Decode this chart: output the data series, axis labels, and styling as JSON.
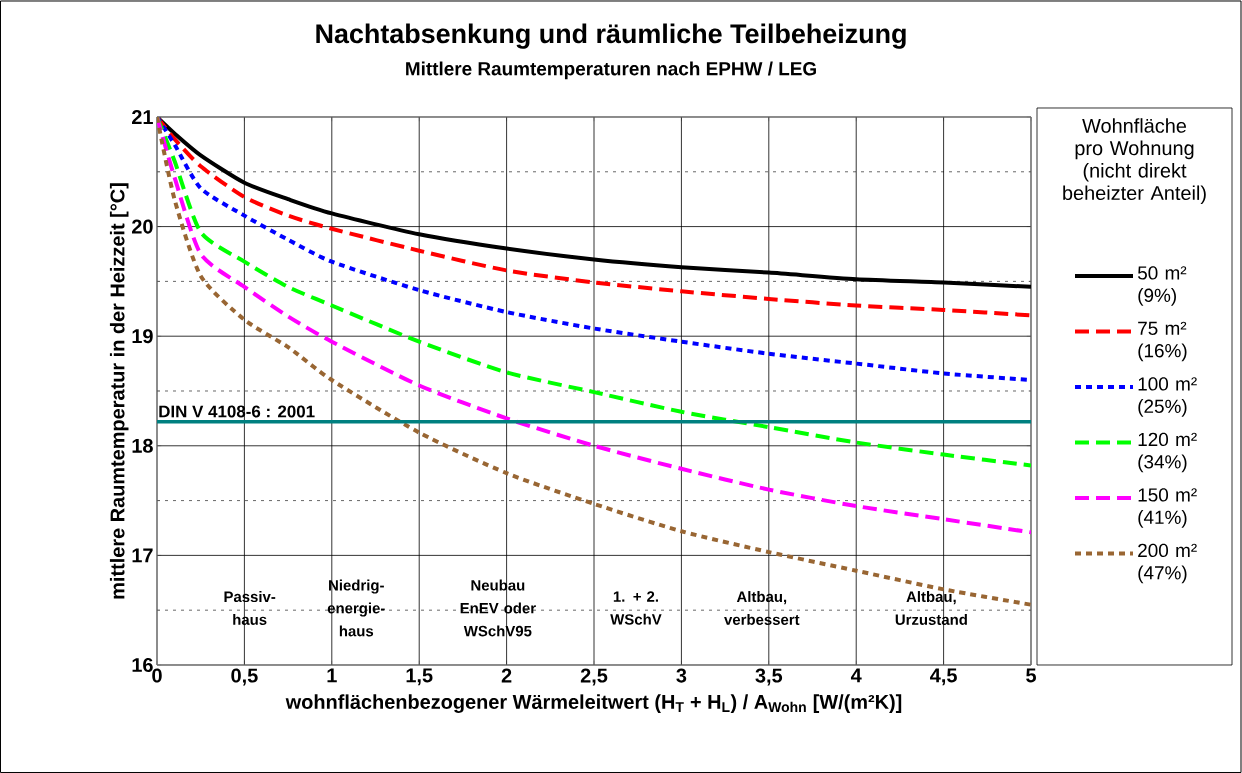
{
  "chart_data": {
    "type": "line",
    "title": "Nachtabsenkung und räumliche Teilbeheizung",
    "subtitle": "Mittlere Raumtemperaturen nach EPHW / LEG",
    "xlabel": "wohnflächenbezogener Wärmeleitwert (H$_{T}$ + H$_{L}$) / A$_{Wohn}$ [W/(m²K)]",
    "ylabel": "mittlere Raumtemperatur in der Heizzeit [°C]",
    "legend_title": "Wohnfläche pro Wohnung (nicht direkt beheizter Anteil)",
    "x": [
      0,
      0.1,
      0.25,
      0.5,
      0.75,
      1,
      1.5,
      2,
      2.5,
      3,
      3.5,
      4,
      4.5,
      5
    ],
    "series": [
      {
        "name": "50 m² (9%)",
        "color": "#000000",
        "line_style": "solid",
        "values": [
          21,
          20.85,
          20.65,
          20.4,
          20.25,
          20.12,
          19.93,
          19.8,
          19.7,
          19.63,
          19.58,
          19.52,
          19.49,
          19.45
        ]
      },
      {
        "name": "75 m² (16%)",
        "color": "#ff0000",
        "line_style": "dashed",
        "values": [
          21,
          20.8,
          20.55,
          20.27,
          20.1,
          19.98,
          19.78,
          19.6,
          19.49,
          19.41,
          19.34,
          19.28,
          19.24,
          19.19
        ]
      },
      {
        "name": "100 m² (25%)",
        "color": "#0000ff",
        "line_style": "dotted",
        "values": [
          21,
          20.75,
          20.35,
          20.1,
          19.88,
          19.68,
          19.42,
          19.22,
          19.07,
          18.95,
          18.84,
          18.75,
          18.66,
          18.6
        ]
      },
      {
        "name": "120 m² (34%)",
        "color": "#00ff00",
        "line_style": "dashed",
        "values": [
          21,
          20.6,
          19.95,
          19.68,
          19.45,
          19.28,
          18.95,
          18.67,
          18.49,
          18.31,
          18.17,
          18.03,
          17.92,
          17.82
        ]
      },
      {
        "name": "150 m² (41%)",
        "color": "#ff00ff",
        "line_style": "dashed",
        "values": [
          21,
          20.45,
          19.75,
          19.45,
          19.18,
          18.95,
          18.55,
          18.25,
          18.0,
          17.79,
          17.6,
          17.45,
          17.33,
          17.21
        ]
      },
      {
        "name": "200 m² (47%)",
        "color": "#996633",
        "line_style": "dotted",
        "values": [
          21,
          20.25,
          19.55,
          19.15,
          18.9,
          18.6,
          18.12,
          17.75,
          17.47,
          17.22,
          17.03,
          16.86,
          16.69,
          16.55
        ]
      }
    ],
    "xlim": [
      0,
      5
    ],
    "ylim": [
      16,
      21
    ],
    "xticks": [
      0,
      {
        "value": 0.5,
        "label": "0,5"
      },
      1,
      {
        "value": 1.5,
        "label": "1,5"
      },
      2,
      {
        "value": 2.5,
        "label": "2,5"
      },
      3,
      {
        "value": 3.5,
        "label": "3,5"
      },
      4,
      {
        "value": 4.5,
        "label": "4,5"
      },
      5
    ],
    "yticks": [
      16,
      {
        "value": 16.5,
        "label": null
      },
      17,
      {
        "value": 17.5,
        "label": null
      },
      18,
      {
        "value": 18.5,
        "label": null
      },
      19,
      {
        "value": 19.5,
        "label": null
      },
      20,
      {
        "value": 20.5,
        "label": null
      },
      21
    ],
    "ref_lines": [
      {
        "axis": "y",
        "value": 18.22,
        "color": "#008080"
      }
    ],
    "annotations": [
      {
        "text": "DIN V 4108-6 : 2001",
        "x": 0,
        "y": 18.22
      },
      "Passiv-haus",
      "Niedrig-energie-haus",
      "Neubau EnEV oder WSchV95",
      "1. + 2. WSchV",
      "Altbau, verbessert",
      "Altbau, Urzustand"
    ],
    "grid": true,
    "legend": "right",
    "marker": "none"
  }
}
